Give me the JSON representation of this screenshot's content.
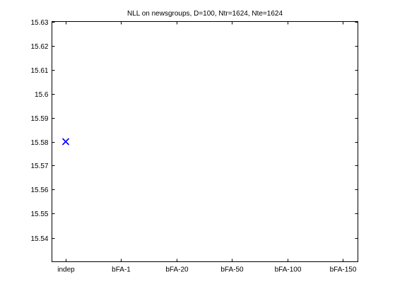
{
  "chart_data": {
    "type": "scatter",
    "title": "NLL on newsgroups, D=100, Ntr=1624, Nte=1624",
    "xlabel": "",
    "ylabel": "",
    "categories": [
      "indep",
      "bFA-1",
      "bFA-20",
      "bFA-50",
      "bFA-100",
      "bFA-150"
    ],
    "y_ticks": [
      "15.54",
      "15.55",
      "15.56",
      "15.57",
      "15.58",
      "15.59",
      "15.6",
      "15.61",
      "15.62",
      "15.63"
    ],
    "ylim": [
      15.53,
      15.63
    ],
    "grid": false,
    "series": [
      {
        "marker": "x",
        "color": "#0000ff",
        "points": [
          {
            "x": "indep",
            "y": 15.58
          }
        ]
      }
    ]
  }
}
